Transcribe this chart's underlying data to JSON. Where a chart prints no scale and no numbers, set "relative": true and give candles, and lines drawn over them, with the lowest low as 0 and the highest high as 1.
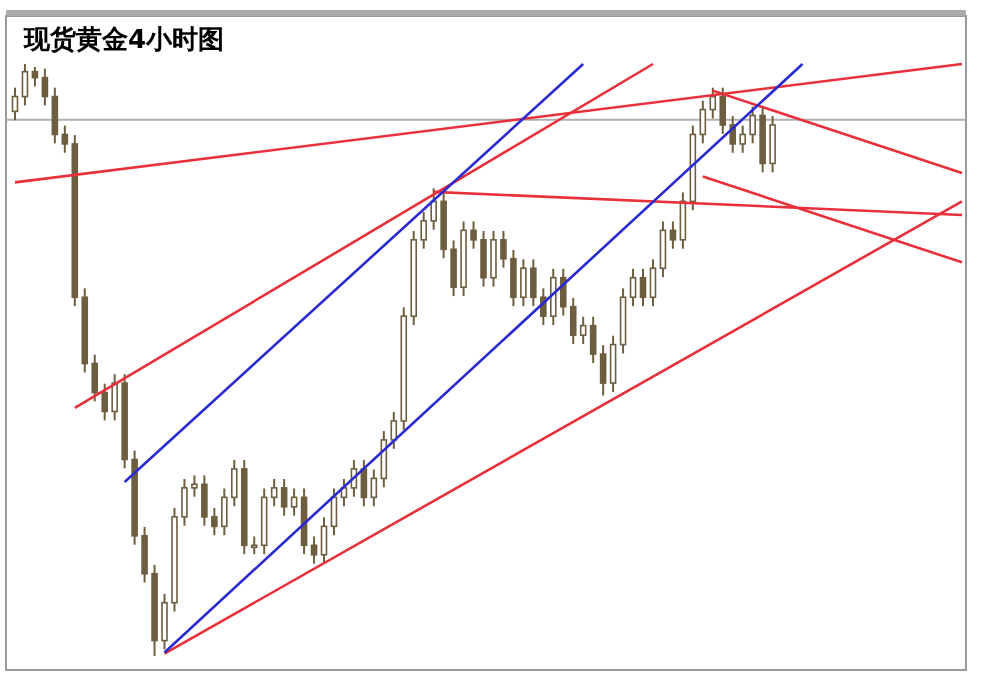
{
  "chart_data": {
    "type": "candlestick",
    "title": "现货黄金4小时图",
    "relative": true,
    "color": "#6e5e40",
    "categories": [
      null,
      null,
      null,
      null,
      null,
      null,
      null,
      null,
      null,
      null,
      null,
      null,
      null,
      null,
      null,
      null,
      null,
      null,
      null,
      null,
      null,
      null,
      null,
      null,
      null,
      null,
      null,
      null,
      null,
      null,
      null,
      null,
      null,
      null,
      null,
      null,
      null,
      null,
      null,
      null,
      null,
      null,
      null,
      null,
      null,
      null,
      null,
      null,
      null,
      null,
      null,
      null,
      null,
      null,
      null,
      null,
      null,
      null,
      null,
      null,
      null,
      null,
      null,
      null,
      null,
      null,
      null,
      null,
      null,
      null,
      null,
      null,
      null,
      null,
      null,
      null,
      null,
      null,
      null,
      null,
      null,
      null,
      null,
      null,
      null,
      null,
      null,
      null,
      null,
      null,
      null,
      null,
      null,
      null,
      null,
      null
    ],
    "ohlc": [
      [
        0.92,
        0.96,
        0.905,
        0.945
      ],
      [
        0.945,
        1,
        0.93,
        0.987
      ],
      [
        0.987,
        0.995,
        0.962,
        0.977
      ],
      [
        0.977,
        0.992,
        0.93,
        0.945
      ],
      [
        0.945,
        0.96,
        0.866,
        0.881
      ],
      [
        0.881,
        0.896,
        0.85,
        0.865
      ],
      [
        0.865,
        0.88,
        0.591,
        0.606
      ],
      [
        0.606,
        0.621,
        0.479,
        0.494
      ],
      [
        0.494,
        0.509,
        0.43,
        0.445
      ],
      [
        0.445,
        0.46,
        0.398,
        0.413
      ],
      [
        0.413,
        0.476,
        0.398,
        0.461
      ],
      [
        0.461,
        0.476,
        0.317,
        0.332
      ],
      [
        0.332,
        0.347,
        0.188,
        0.203
      ],
      [
        0.203,
        0.218,
        0.124,
        0.139
      ],
      [
        0.139,
        0.154,
        0,
        0.026
      ],
      [
        0.026,
        0.105,
        0.011,
        0.09
      ],
      [
        0.09,
        0.25,
        0.075,
        0.235
      ],
      [
        0.235,
        0.299,
        0.22,
        0.284
      ],
      [
        0.284,
        0.305,
        0.269,
        0.29
      ],
      [
        0.29,
        0.305,
        0.22,
        0.235
      ],
      [
        0.235,
        0.25,
        0.204,
        0.219
      ],
      [
        0.219,
        0.283,
        0.204,
        0.268
      ],
      [
        0.268,
        0.331,
        0.253,
        0.316
      ],
      [
        0.316,
        0.331,
        0.172,
        0.187
      ],
      [
        0.187,
        0.202,
        0.172,
        0.187
      ],
      [
        0.187,
        0.283,
        0.172,
        0.268
      ],
      [
        0.268,
        0.299,
        0.253,
        0.284
      ],
      [
        0.284,
        0.299,
        0.237,
        0.252
      ],
      [
        0.252,
        0.283,
        0.237,
        0.268
      ],
      [
        0.268,
        0.283,
        0.172,
        0.187
      ],
      [
        0.187,
        0.202,
        0.156,
        0.171
      ],
      [
        0.171,
        0.234,
        0.156,
        0.219
      ],
      [
        0.219,
        0.283,
        0.204,
        0.268
      ],
      [
        0.268,
        0.299,
        0.253,
        0.284
      ],
      [
        0.284,
        0.331,
        0.269,
        0.316
      ],
      [
        0.316,
        0.331,
        0.253,
        0.268
      ],
      [
        0.268,
        0.315,
        0.253,
        0.3
      ],
      [
        0.3,
        0.38,
        0.285,
        0.365
      ],
      [
        0.365,
        0.412,
        0.35,
        0.397
      ],
      [
        0.397,
        0.589,
        0.382,
        0.574
      ],
      [
        0.574,
        0.718,
        0.559,
        0.703
      ],
      [
        0.703,
        0.75,
        0.688,
        0.735
      ],
      [
        0.735,
        0.79,
        0.72,
        0.768
      ],
      [
        0.768,
        0.783,
        0.672,
        0.687
      ],
      [
        0.687,
        0.702,
        0.608,
        0.623
      ],
      [
        0.623,
        0.734,
        0.608,
        0.719
      ],
      [
        0.719,
        0.734,
        0.688,
        0.703
      ],
      [
        0.703,
        0.718,
        0.624,
        0.639
      ],
      [
        0.639,
        0.718,
        0.624,
        0.703
      ],
      [
        0.703,
        0.718,
        0.656,
        0.671
      ],
      [
        0.671,
        0.686,
        0.591,
        0.606
      ],
      [
        0.606,
        0.67,
        0.591,
        0.655
      ],
      [
        0.655,
        0.67,
        0.591,
        0.606
      ],
      [
        0.606,
        0.621,
        0.559,
        0.574
      ],
      [
        0.574,
        0.654,
        0.559,
        0.639
      ],
      [
        0.639,
        0.654,
        0.575,
        0.59
      ],
      [
        0.59,
        0.605,
        0.527,
        0.542
      ],
      [
        0.542,
        0.573,
        0.527,
        0.558
      ],
      [
        0.558,
        0.573,
        0.495,
        0.51
      ],
      [
        0.51,
        0.525,
        0.44,
        0.461
      ],
      [
        0.461,
        0.541,
        0.446,
        0.526
      ],
      [
        0.526,
        0.621,
        0.511,
        0.606
      ],
      [
        0.606,
        0.654,
        0.591,
        0.639
      ],
      [
        0.639,
        0.654,
        0.591,
        0.606
      ],
      [
        0.606,
        0.67,
        0.591,
        0.655
      ],
      [
        0.655,
        0.734,
        0.64,
        0.719
      ],
      [
        0.719,
        0.734,
        0.688,
        0.703
      ],
      [
        0.703,
        0.783,
        0.688,
        0.768
      ],
      [
        0.768,
        0.896,
        0.753,
        0.881
      ],
      [
        0.881,
        0.938,
        0.866,
        0.923
      ],
      [
        0.923,
        0.96,
        0.908,
        0.945
      ],
      [
        0.945,
        0.96,
        0.882,
        0.897
      ],
      [
        0.897,
        0.912,
        0.85,
        0.865
      ],
      [
        0.865,
        0.896,
        0.85,
        0.881
      ],
      [
        0.881,
        0.928,
        0.866,
        0.913
      ],
      [
        0.913,
        0.928,
        0.817,
        0.832
      ],
      [
        0.832,
        0.912,
        0.817,
        0.897
      ],
      null,
      null,
      null,
      null,
      null,
      null,
      null,
      null,
      null,
      null,
      null,
      null,
      null,
      null,
      null,
      null,
      null,
      null,
      null
    ],
    "series": [
      {
        "type": "line",
        "color": "#e8303a",
        "values": [
          0.8,
          null,
          null,
          null,
          null,
          null,
          null,
          null,
          null,
          null,
          null,
          null,
          null,
          null,
          null,
          null,
          null,
          null,
          null,
          null,
          null,
          null,
          null,
          null,
          null,
          null,
          null,
          null,
          null,
          null,
          null,
          null,
          null,
          null,
          null,
          null,
          null,
          null,
          null,
          null,
          null,
          null,
          null,
          null,
          null,
          null,
          null,
          null,
          null,
          null,
          null,
          null,
          null,
          null,
          null,
          null,
          null,
          null,
          null,
          null,
          null,
          null,
          null,
          null,
          null,
          null,
          null,
          null,
          null,
          null,
          null,
          null,
          null,
          null,
          null,
          null,
          null,
          null,
          null,
          null,
          null,
          null,
          null,
          null,
          null,
          null,
          null,
          null,
          null,
          null,
          null,
          null,
          null,
          null,
          null,
          1.0
        ]
      },
      {
        "type": "line",
        "color": "#e8303a",
        "values": [
          null,
          null,
          null,
          null,
          null,
          null,
          0.419,
          null,
          null,
          null,
          null,
          null,
          null,
          null,
          null,
          null,
          null,
          null,
          null,
          null,
          null,
          null,
          null,
          null,
          null,
          null,
          null,
          null,
          null,
          null,
          null,
          null,
          null,
          null,
          null,
          null,
          null,
          null,
          null,
          null,
          null,
          null,
          null,
          null,
          null,
          null,
          null,
          null,
          null,
          null,
          null,
          null,
          null,
          null,
          null,
          null,
          null,
          null,
          null,
          null,
          null,
          null,
          null,
          null,
          1.0,
          null,
          null,
          null,
          null,
          null,
          null,
          null,
          null,
          null,
          null,
          null,
          null,
          null,
          null,
          null,
          null,
          null,
          null,
          null,
          null,
          null,
          null,
          null,
          null,
          null,
          null,
          null,
          null,
          null,
          null,
          null
        ]
      },
      {
        "type": "line",
        "color": "#e8303a",
        "values": [
          null,
          null,
          null,
          null,
          null,
          null,
          null,
          null,
          null,
          null,
          null,
          null,
          null,
          null,
          null,
          0.004,
          null,
          null,
          null,
          null,
          null,
          null,
          null,
          null,
          null,
          null,
          null,
          null,
          null,
          null,
          null,
          null,
          null,
          null,
          null,
          null,
          null,
          null,
          null,
          null,
          null,
          null,
          null,
          null,
          null,
          null,
          null,
          null,
          null,
          null,
          null,
          null,
          null,
          null,
          null,
          null,
          null,
          null,
          null,
          null,
          null,
          null,
          null,
          null,
          null,
          null,
          null,
          null,
          null,
          null,
          null,
          null,
          null,
          null,
          null,
          null,
          null,
          null,
          null,
          null,
          null,
          null,
          null,
          null,
          null,
          null,
          null,
          null,
          null,
          null,
          null,
          null,
          null,
          null,
          null,
          0.768
        ]
      },
      {
        "type": "line",
        "color": "#e8303a",
        "values": [
          null,
          null,
          null,
          null,
          null,
          null,
          null,
          null,
          null,
          null,
          null,
          null,
          null,
          null,
          null,
          null,
          null,
          null,
          null,
          null,
          null,
          null,
          null,
          null,
          null,
          null,
          null,
          null,
          null,
          null,
          null,
          null,
          null,
          null,
          null,
          null,
          null,
          null,
          null,
          null,
          null,
          null,
          0.784,
          null,
          null,
          null,
          null,
          null,
          null,
          null,
          null,
          null,
          null,
          null,
          null,
          null,
          null,
          null,
          null,
          null,
          null,
          null,
          null,
          null,
          null,
          null,
          null,
          null,
          null,
          null,
          null,
          null,
          null,
          null,
          null,
          null,
          null,
          null,
          null,
          null,
          null,
          null,
          null,
          null,
          null,
          null,
          null,
          null,
          null,
          null,
          null,
          null,
          null,
          null,
          null,
          0.745
        ]
      },
      {
        "type": "line",
        "color": "#e8303a",
        "values": [
          null,
          null,
          null,
          null,
          null,
          null,
          null,
          null,
          null,
          null,
          null,
          null,
          null,
          null,
          null,
          null,
          null,
          null,
          null,
          null,
          null,
          null,
          null,
          null,
          null,
          null,
          null,
          null,
          null,
          null,
          null,
          null,
          null,
          null,
          null,
          null,
          null,
          null,
          null,
          null,
          null,
          null,
          null,
          null,
          null,
          null,
          null,
          null,
          null,
          null,
          null,
          null,
          null,
          null,
          null,
          null,
          null,
          null,
          null,
          null,
          null,
          null,
          null,
          null,
          null,
          null,
          null,
          null,
          null,
          null,
          0.955,
          null,
          null,
          null,
          null,
          null,
          null,
          null,
          null,
          null,
          null,
          null,
          null,
          null,
          null,
          null,
          null,
          null,
          null,
          null,
          null,
          null,
          null,
          null,
          null,
          0.816
        ]
      },
      {
        "type": "line",
        "color": "#e8303a",
        "values": [
          null,
          null,
          null,
          null,
          null,
          null,
          null,
          null,
          null,
          null,
          null,
          null,
          null,
          null,
          null,
          null,
          null,
          null,
          null,
          null,
          null,
          null,
          null,
          null,
          null,
          null,
          null,
          null,
          null,
          null,
          null,
          null,
          null,
          null,
          null,
          null,
          null,
          null,
          null,
          null,
          null,
          null,
          null,
          null,
          null,
          null,
          null,
          null,
          null,
          null,
          null,
          null,
          null,
          null,
          null,
          null,
          null,
          null,
          null,
          null,
          null,
          null,
          null,
          null,
          null,
          null,
          null,
          null,
          null,
          0.81,
          null,
          null,
          null,
          null,
          null,
          null,
          null,
          null,
          null,
          null,
          null,
          null,
          null,
          null,
          null,
          null,
          null,
          null,
          null,
          null,
          null,
          null,
          null,
          null,
          null,
          0.665
        ]
      },
      {
        "type": "line",
        "color": "#2a2ad0",
        "values": [
          null,
          null,
          null,
          null,
          null,
          null,
          null,
          null,
          null,
          null,
          null,
          0.294,
          null,
          null,
          null,
          null,
          null,
          null,
          null,
          null,
          null,
          null,
          null,
          null,
          null,
          null,
          null,
          null,
          null,
          null,
          null,
          null,
          null,
          null,
          null,
          null,
          null,
          null,
          null,
          null,
          null,
          null,
          null,
          null,
          null,
          null,
          null,
          null,
          null,
          null,
          null,
          null,
          null,
          null,
          null,
          null,
          null,
          1.0,
          null,
          null,
          null,
          null,
          null,
          null,
          null,
          null,
          null,
          null,
          null,
          null,
          null,
          null,
          null,
          null,
          null,
          null,
          null,
          null,
          null,
          null,
          null,
          null,
          null,
          null,
          null,
          null,
          null,
          null,
          null,
          null,
          null,
          null,
          null,
          null,
          null,
          null
        ]
      },
      {
        "type": "line",
        "color": "#2a2ad0",
        "values": [
          null,
          null,
          null,
          null,
          null,
          null,
          null,
          null,
          null,
          null,
          null,
          null,
          null,
          null,
          null,
          0.006,
          null,
          null,
          null,
          null,
          null,
          null,
          null,
          null,
          null,
          null,
          null,
          null,
          null,
          null,
          null,
          null,
          null,
          null,
          null,
          null,
          null,
          null,
          null,
          null,
          null,
          null,
          null,
          null,
          null,
          null,
          null,
          null,
          null,
          null,
          null,
          null,
          null,
          null,
          null,
          null,
          null,
          null,
          null,
          null,
          null,
          null,
          null,
          null,
          null,
          null,
          null,
          null,
          null,
          null,
          null,
          null,
          null,
          null,
          null,
          null,
          null,
          null,
          null,
          1.0,
          null,
          null,
          null,
          null,
          null,
          null,
          null,
          null,
          null,
          null,
          null,
          null,
          null,
          null,
          null,
          null
        ]
      }
    ],
    "ref_lines": [
      {
        "axis": "y",
        "value": 0.906,
        "color": "#b0b0b0"
      }
    ]
  }
}
